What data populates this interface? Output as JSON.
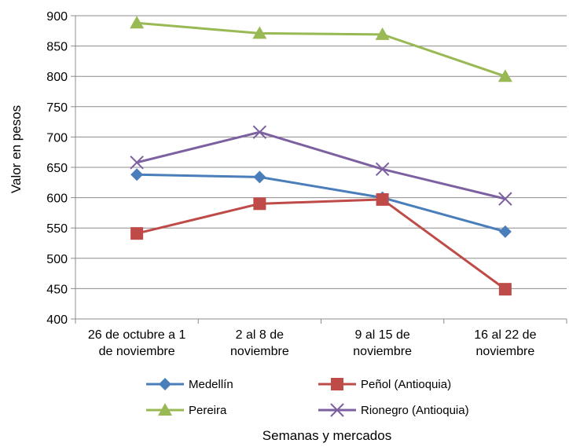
{
  "chart_data": {
    "type": "line",
    "title": "",
    "xlabel": "Semanas y mercados",
    "ylabel": "Valor en pesos",
    "ylim": [
      400,
      900
    ],
    "yticks": [
      400,
      450,
      500,
      550,
      600,
      650,
      700,
      750,
      800,
      850,
      900
    ],
    "grid": true,
    "legend_position": "bottom",
    "categories": [
      [
        "26 de octubre a 1",
        "de noviembre"
      ],
      [
        "2 al 8 de",
        "noviembre"
      ],
      [
        "9 al 15 de",
        "noviembre"
      ],
      [
        "16 al 22 de",
        "noviembre"
      ]
    ],
    "series": [
      {
        "name": "Medellín",
        "values": [
          638,
          634,
          600,
          544
        ],
        "color": "#4A7EBB",
        "marker": "diamond"
      },
      {
        "name": "Peñol (Antioquia)",
        "values": [
          541,
          590,
          597,
          449
        ],
        "color": "#BE4B48",
        "marker": "square"
      },
      {
        "name": "Pereira",
        "values": [
          888,
          871,
          869,
          800
        ],
        "color": "#98B954",
        "marker": "triangle"
      },
      {
        "name": "Rionegro (Antioquia)",
        "values": [
          658,
          708,
          647,
          598
        ],
        "color": "#7D60A0",
        "marker": "x"
      }
    ]
  }
}
